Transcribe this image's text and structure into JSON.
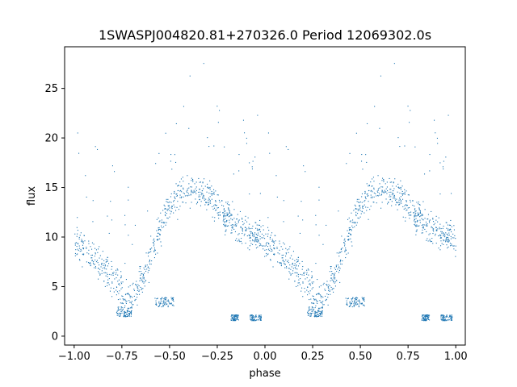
{
  "chart_data": {
    "type": "scatter",
    "title": "1SWASPJ004820.81+270326.0 Period 12069302.0s",
    "xlabel": "phase",
    "ylabel": "flux",
    "xlim": [
      -1.05,
      1.05
    ],
    "ylim": [
      -0.9,
      29.2
    ],
    "x_ticks": [
      -1.0,
      -0.75,
      -0.5,
      -0.25,
      0.0,
      0.25,
      0.5,
      0.75,
      1.0
    ],
    "x_tick_labels": [
      "−1.00",
      "−0.75",
      "−0.50",
      "−0.25",
      "0.00",
      "0.25",
      "0.50",
      "0.75",
      "1.00"
    ],
    "y_ticks": [
      0,
      5,
      10,
      15,
      20,
      25
    ],
    "y_tick_labels": [
      "0",
      "5",
      "10",
      "15",
      "20",
      "25"
    ],
    "grid": false,
    "point_color": "#1f77b4",
    "trend": {
      "phase": [
        0.0,
        0.02,
        0.06,
        0.1,
        0.14,
        0.18,
        0.22,
        0.24,
        0.26,
        0.3,
        0.34,
        0.38,
        0.42,
        0.46,
        0.5,
        0.54,
        0.58,
        0.62,
        0.66,
        0.7,
        0.74,
        0.78,
        0.82,
        0.86,
        0.9,
        0.94,
        0.98,
        1.0
      ],
      "flux": [
        10.0,
        9.4,
        8.8,
        8.0,
        7.1,
        6.2,
        5.5,
        5.0,
        3.3,
        3.8,
        5.0,
        7.0,
        9.3,
        11.5,
        13.2,
        14.2,
        14.7,
        14.8,
        14.7,
        14.2,
        13.4,
        12.5,
        11.8,
        11.0,
        10.5,
        10.2,
        10.0,
        10.0
      ]
    },
    "clusters": [
      {
        "phase": [
          0.22,
          0.3
        ],
        "flux": [
          2.0,
          3.0
        ]
      },
      {
        "phase": [
          0.42,
          0.52
        ],
        "flux": [
          3.0,
          4.0
        ]
      },
      {
        "phase": [
          0.82,
          0.86
        ],
        "flux": [
          1.6,
          2.2
        ]
      },
      {
        "phase": [
          -0.08,
          -0.02
        ],
        "flux": [
          1.6,
          2.2
        ]
      }
    ]
  }
}
